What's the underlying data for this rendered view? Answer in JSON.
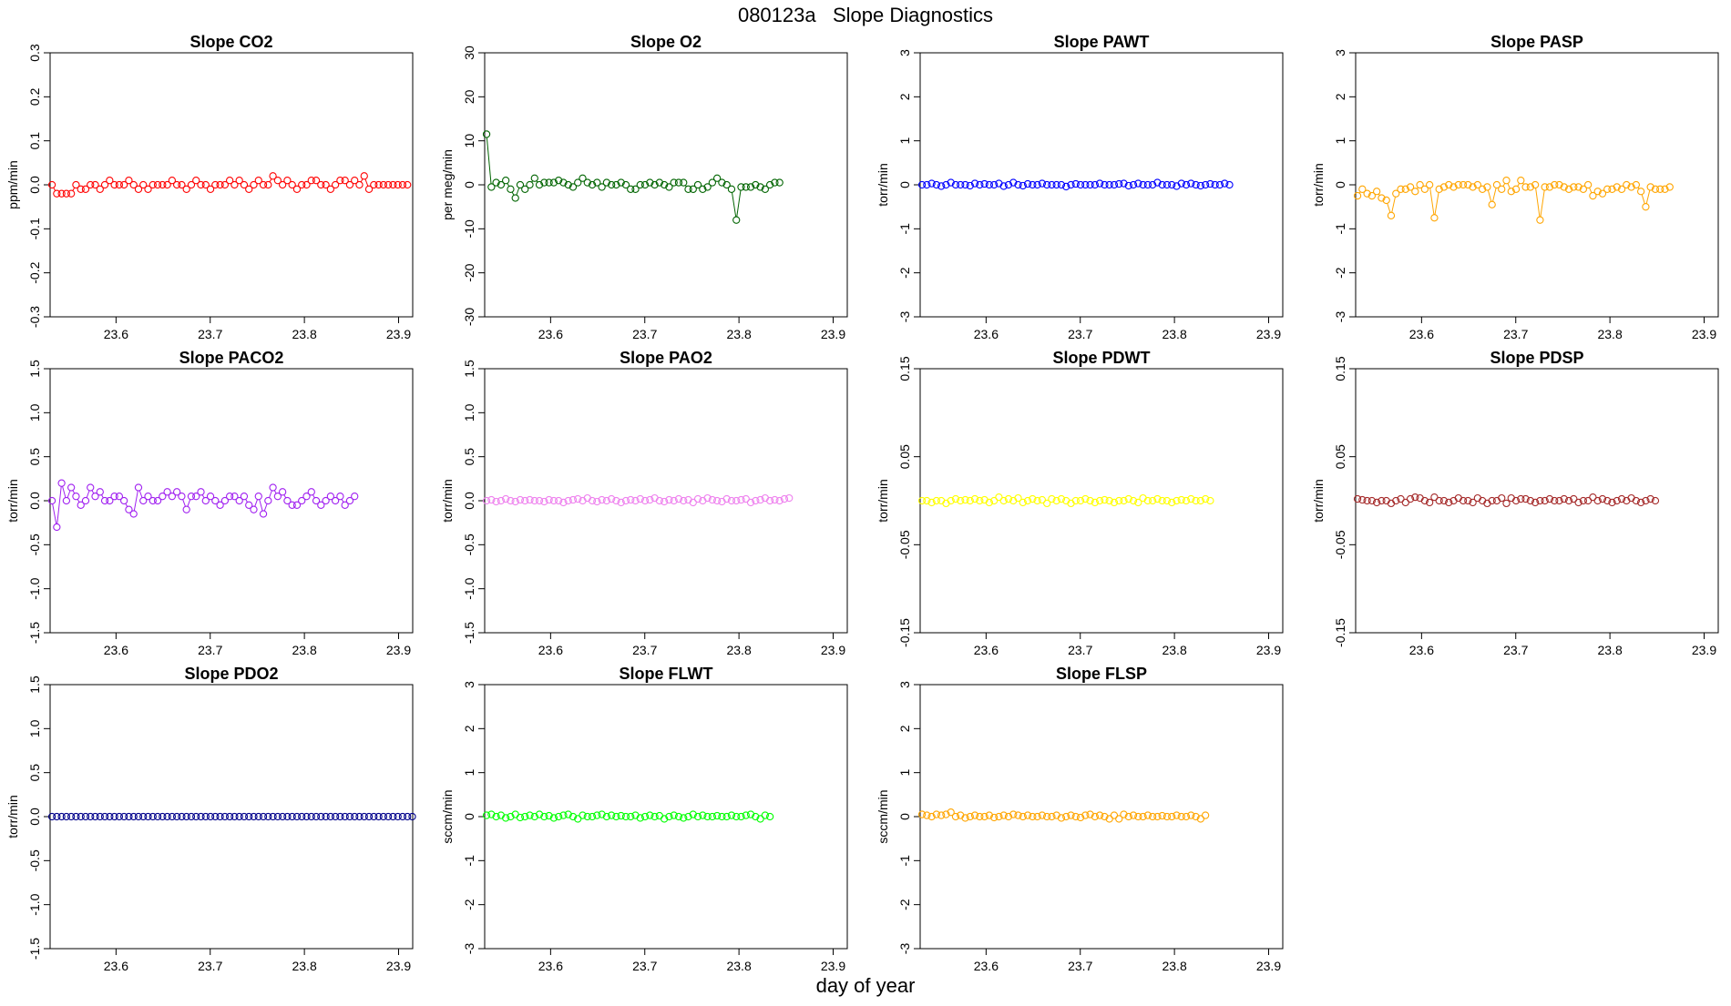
{
  "page": {
    "title": "080123a   Slope Diagnostics",
    "xlabel": "day of year"
  },
  "chart_data": [
    {
      "type": "line",
      "title": "Slope CO2",
      "ylabel": "ppm/min",
      "color": "#ff0000",
      "ylim": [
        -0.3,
        0.3
      ],
      "yticks": [
        -0.3,
        -0.2,
        -0.1,
        0.0,
        0.1,
        0.2,
        0.3
      ],
      "xlim": [
        23.53,
        23.915
      ],
      "xticks": [
        23.6,
        23.7,
        23.8,
        23.9
      ],
      "x_start": 23.532,
      "x_step": 0.0051,
      "values": [
        0.0,
        -0.02,
        -0.02,
        -0.02,
        -0.02,
        0.0,
        -0.01,
        -0.01,
        0.0,
        0.0,
        -0.01,
        0.0,
        0.01,
        0.0,
        0.0,
        0.0,
        0.01,
        0.0,
        -0.01,
        0.0,
        -0.01,
        0.0,
        0.0,
        0.0,
        0.0,
        0.01,
        0.0,
        0.0,
        -0.01,
        0.0,
        0.01,
        0.0,
        0.0,
        -0.01,
        0.0,
        0.0,
        0.0,
        0.01,
        0.0,
        0.01,
        0.0,
        -0.01,
        0.0,
        0.01,
        0.0,
        0.0,
        0.02,
        0.01,
        0.0,
        0.01,
        0.0,
        -0.01,
        0.0,
        0.0,
        0.01,
        0.01,
        0.0,
        0.0,
        -0.01,
        0.0,
        0.01,
        0.01,
        0.0,
        0.01,
        0.0,
        0.02,
        -0.01,
        0.0,
        0.0,
        0.0,
        0.0,
        0.0,
        0.0,
        0.0,
        0.0
      ]
    },
    {
      "type": "line",
      "title": "Slope O2",
      "ylabel": "per meg/min",
      "color": "#006400",
      "ylim": [
        -30,
        30
      ],
      "yticks": [
        -30,
        -20,
        -10,
        0,
        10,
        20,
        30
      ],
      "xlim": [
        23.53,
        23.915
      ],
      "xticks": [
        23.6,
        23.7,
        23.8,
        23.9
      ],
      "x_start": 23.532,
      "x_step": 0.0051,
      "values": [
        11.5,
        -0.5,
        0.5,
        0.0,
        1.0,
        -1.0,
        -3.0,
        0.0,
        -1.0,
        0.0,
        1.5,
        0.0,
        0.5,
        0.5,
        0.5,
        1.0,
        0.5,
        0.0,
        -0.5,
        0.5,
        1.5,
        0.5,
        0.0,
        0.5,
        -0.5,
        0.5,
        0.0,
        0.0,
        0.5,
        0.0,
        -1.0,
        -1.0,
        0.0,
        0.0,
        0.5,
        0.0,
        0.5,
        0.0,
        -0.5,
        0.5,
        0.5,
        0.5,
        -1.0,
        -1.0,
        0.0,
        -1.0,
        -0.5,
        0.5,
        1.5,
        0.5,
        0.0,
        -1.0,
        -8.0,
        -0.5,
        -0.5,
        -0.5,
        0.0,
        -0.5,
        -1.0,
        0.0,
        0.5,
        0.5
      ]
    },
    {
      "type": "line",
      "title": "Slope PAWT",
      "ylabel": "torr/min",
      "color": "#0000ff",
      "ylim": [
        -3,
        3
      ],
      "yticks": [
        -3,
        -2,
        -1,
        0,
        1,
        2,
        3
      ],
      "xlim": [
        23.53,
        23.915
      ],
      "xticks": [
        23.6,
        23.7,
        23.8,
        23.9
      ],
      "x_start": 23.532,
      "x_step": 0.0051,
      "values": [
        0.0,
        0.0,
        0.03,
        0.0,
        -0.03,
        0.0,
        0.05,
        0.0,
        0.0,
        0.0,
        -0.02,
        0.03,
        0.0,
        0.02,
        0.0,
        0.0,
        0.03,
        -0.03,
        0.0,
        0.05,
        0.0,
        -0.02,
        0.02,
        0.0,
        0.0,
        0.03,
        0.0,
        0.0,
        0.0,
        0.0,
        -0.04,
        0.0,
        0.02,
        0.0,
        0.0,
        0.0,
        0.0,
        0.03,
        0.0,
        0.0,
        0.0,
        0.02,
        0.03,
        -0.02,
        0.0,
        0.03,
        0.0,
        0.0,
        0.0,
        0.05,
        0.0,
        0.0,
        0.0,
        -0.03,
        0.03,
        0.0,
        0.03,
        0.0,
        -0.02,
        0.0,
        0.02,
        0.0,
        0.0,
        0.03,
        0.0
      ]
    },
    {
      "type": "line",
      "title": "Slope PASP",
      "ylabel": "torr/min",
      "color": "#ffa500",
      "ylim": [
        -3,
        3
      ],
      "yticks": [
        -3,
        -2,
        -1,
        0,
        1,
        2,
        3
      ],
      "xlim": [
        23.53,
        23.915
      ],
      "xticks": [
        23.6,
        23.7,
        23.8,
        23.9
      ],
      "x_start": 23.532,
      "x_step": 0.0051,
      "values": [
        -0.25,
        -0.1,
        -0.2,
        -0.25,
        -0.15,
        -0.3,
        -0.35,
        -0.7,
        -0.2,
        -0.1,
        -0.1,
        -0.05,
        -0.15,
        0.0,
        -0.1,
        0.0,
        -0.75,
        -0.1,
        -0.05,
        0.0,
        -0.05,
        0.0,
        0.0,
        0.0,
        -0.05,
        0.0,
        -0.1,
        -0.05,
        -0.45,
        0.0,
        -0.1,
        0.1,
        -0.15,
        -0.1,
        0.1,
        -0.05,
        -0.05,
        0.0,
        -0.8,
        -0.05,
        -0.05,
        0.0,
        0.0,
        -0.05,
        -0.1,
        -0.05,
        -0.05,
        -0.1,
        0.0,
        -0.25,
        -0.15,
        -0.2,
        -0.1,
        -0.1,
        -0.05,
        -0.1,
        0.0,
        -0.05,
        0.0,
        -0.15,
        -0.5,
        -0.05,
        -0.1,
        -0.1,
        -0.1,
        -0.05
      ]
    },
    {
      "type": "line",
      "title": "Slope PACO2",
      "ylabel": "torr/min",
      "color": "#a020f0",
      "ylim": [
        -1.5,
        1.5
      ],
      "yticks": [
        -1.5,
        -1.0,
        -0.5,
        0.0,
        0.5,
        1.0,
        1.5
      ],
      "xlim": [
        23.53,
        23.915
      ],
      "xticks": [
        23.6,
        23.7,
        23.8,
        23.9
      ],
      "x_start": 23.532,
      "x_step": 0.0051,
      "values": [
        0.0,
        -0.3,
        0.2,
        0.0,
        0.15,
        0.05,
        -0.05,
        0.0,
        0.15,
        0.05,
        0.1,
        0.0,
        0.0,
        0.05,
        0.05,
        0.0,
        -0.1,
        -0.15,
        0.15,
        0.0,
        0.05,
        0.0,
        0.0,
        0.05,
        0.1,
        0.05,
        0.1,
        0.05,
        -0.1,
        0.05,
        0.05,
        0.1,
        0.0,
        0.05,
        0.0,
        -0.05,
        0.0,
        0.05,
        0.05,
        0.0,
        0.05,
        -0.05,
        -0.1,
        0.05,
        -0.15,
        0.0,
        0.15,
        0.05,
        0.1,
        0.0,
        -0.05,
        -0.05,
        0.0,
        0.05,
        0.1,
        0.0,
        -0.05,
        0.0,
        0.05,
        0.0,
        0.05,
        -0.05,
        0.0,
        0.05
      ]
    },
    {
      "type": "line",
      "title": "Slope PAO2",
      "ylabel": "torr/min",
      "color": "#ee82ee",
      "ylim": [
        -1.5,
        1.5
      ],
      "yticks": [
        -1.5,
        -1.0,
        -0.5,
        0.0,
        0.5,
        1.0,
        1.5
      ],
      "xlim": [
        23.53,
        23.915
      ],
      "xticks": [
        23.6,
        23.7,
        23.8,
        23.9
      ],
      "x_start": 23.532,
      "x_step": 0.0051,
      "values": [
        0.0,
        0.01,
        -0.01,
        0.0,
        0.02,
        0.0,
        -0.01,
        0.01,
        0.0,
        0.01,
        0.0,
        0.0,
        -0.01,
        0.01,
        0.0,
        0.0,
        -0.02,
        0.0,
        0.01,
        0.02,
        0.0,
        0.03,
        0.0,
        -0.01,
        0.01,
        0.0,
        0.02,
        0.0,
        -0.02,
        0.0,
        0.01,
        0.0,
        0.02,
        0.0,
        0.01,
        0.03,
        0.0,
        -0.01,
        0.01,
        0.0,
        0.02,
        0.0,
        0.01,
        -0.02,
        0.02,
        0.0,
        0.03,
        0.01,
        0.0,
        -0.01,
        0.02,
        0.0,
        0.0,
        0.01,
        0.02,
        -0.02,
        0.0,
        0.01,
        0.03,
        0.0,
        0.01,
        0.0,
        0.02,
        0.03
      ]
    },
    {
      "type": "line",
      "title": "Slope PDWT",
      "ylabel": "torr/min",
      "color": "#ffff00",
      "ylim": [
        -0.15,
        0.15
      ],
      "yticks": [
        -0.15,
        -0.05,
        0.05,
        0.15
      ],
      "xlim": [
        23.53,
        23.915
      ],
      "xticks": [
        23.6,
        23.7,
        23.8,
        23.9
      ],
      "x_start": 23.532,
      "x_step": 0.0051,
      "values": [
        0.0,
        0.0,
        -0.002,
        0.0,
        0.0,
        -0.003,
        0.0,
        0.002,
        0.0,
        0.001,
        0.0,
        0.002,
        0.0,
        0.001,
        -0.002,
        0.0,
        0.004,
        0.0,
        0.002,
        0.0,
        0.003,
        -0.002,
        0.0,
        0.002,
        0.0,
        0.001,
        -0.003,
        0.002,
        0.0,
        0.002,
        0.0,
        -0.003,
        0.0,
        0.0,
        0.002,
        0.0,
        -0.002,
        0.0,
        0.001,
        0.0,
        -0.002,
        0.0,
        0.0,
        0.002,
        0.0,
        -0.002,
        0.003,
        0.0,
        0.0,
        0.002,
        0.0,
        0.0,
        -0.002,
        0.0,
        0.001,
        0.0,
        0.002,
        0.0,
        0.0,
        0.002,
        0.0
      ]
    },
    {
      "type": "line",
      "title": "Slope PDSP",
      "ylabel": "torr/min",
      "color": "#a52a2a",
      "ylim": [
        -0.15,
        0.15
      ],
      "yticks": [
        -0.15,
        -0.05,
        0.05,
        0.15
      ],
      "xlim": [
        23.53,
        23.915
      ],
      "xticks": [
        23.6,
        23.7,
        23.8,
        23.9
      ],
      "x_start": 23.532,
      "x_step": 0.0051,
      "values": [
        0.002,
        0.001,
        0.0,
        0.0,
        -0.002,
        0.0,
        0.0,
        -0.003,
        0.0,
        0.002,
        -0.002,
        0.002,
        0.004,
        0.003,
        0.0,
        -0.002,
        0.004,
        0.0,
        0.0,
        -0.002,
        0.0,
        0.003,
        0.0,
        0.0,
        -0.002,
        0.003,
        0.0,
        -0.003,
        0.0,
        0.0,
        0.003,
        -0.003,
        0.003,
        0.0,
        0.002,
        0.002,
        0.0,
        -0.002,
        0.0,
        0.0,
        0.002,
        0.0,
        0.0,
        0.002,
        0.0,
        0.002,
        -0.002,
        0.0,
        0.0,
        0.004,
        0.0,
        0.002,
        0.0,
        -0.002,
        0.0,
        0.002,
        0.0,
        0.003,
        0.0,
        -0.002,
        0.0,
        0.002,
        0.0
      ]
    },
    {
      "type": "line",
      "title": "Slope PDO2",
      "ylabel": "torr/min",
      "color": "#00008b",
      "ylim": [
        -1.5,
        1.5
      ],
      "yticks": [
        -1.5,
        -1.0,
        -0.5,
        0.0,
        0.5,
        1.0,
        1.5
      ],
      "xlim": [
        23.53,
        23.915
      ],
      "xticks": [
        23.6,
        23.7,
        23.8,
        23.9
      ],
      "x_start": 23.532,
      "x_step": 0.0051,
      "values": [
        0,
        0,
        0,
        0,
        0,
        0,
        0,
        0,
        0,
        0,
        0,
        0,
        0,
        0,
        0,
        0,
        0,
        0,
        0,
        0,
        0,
        0,
        0,
        0,
        0,
        0,
        0,
        0,
        0,
        0,
        0,
        0,
        0,
        0,
        0,
        0,
        0,
        0,
        0,
        0,
        0,
        0,
        0,
        0,
        0,
        0,
        0,
        0,
        0,
        0,
        0,
        0,
        0,
        0,
        0,
        0,
        0,
        0,
        0,
        0,
        0,
        0,
        0,
        0,
        0,
        0,
        0,
        0,
        0,
        0,
        0,
        0,
        0,
        0,
        0,
        0
      ]
    },
    {
      "type": "line",
      "title": "Slope FLWT",
      "ylabel": "sccm/min",
      "color": "#00ff00",
      "ylim": [
        -3,
        3
      ],
      "yticks": [
        -3,
        -2,
        -1,
        0,
        1,
        2,
        3
      ],
      "xlim": [
        23.53,
        23.915
      ],
      "xticks": [
        23.6,
        23.7,
        23.8,
        23.9
      ],
      "x_start": 23.532,
      "x_step": 0.0051,
      "values": [
        0.03,
        0.05,
        0.0,
        0.03,
        -0.03,
        0.0,
        0.05,
        -0.02,
        0.0,
        0.03,
        0.0,
        0.05,
        0.0,
        0.02,
        -0.03,
        0.0,
        0.03,
        0.05,
        0.0,
        -0.05,
        0.03,
        0.0,
        0.0,
        0.03,
        0.05,
        0.0,
        0.03,
        0.0,
        0.02,
        0.0,
        0.0,
        0.03,
        -0.03,
        0.0,
        0.03,
        0.0,
        0.02,
        -0.05,
        0.0,
        0.03,
        0.0,
        -0.03,
        0.0,
        0.05,
        0.0,
        0.03,
        0.0,
        0.0,
        0.02,
        0.0,
        0.0,
        0.03,
        0.0,
        0.0,
        0.03,
        0.05,
        0.0,
        -0.05,
        0.03,
        0.0
      ]
    },
    {
      "type": "line",
      "title": "Slope FLSP",
      "ylabel": "sccm/min",
      "color": "#ffa500",
      "ylim": [
        -3,
        3
      ],
      "yticks": [
        -3,
        -2,
        -1,
        0,
        1,
        2,
        3
      ],
      "xlim": [
        23.53,
        23.915
      ],
      "xticks": [
        23.6,
        23.7,
        23.8,
        23.9
      ],
      "x_start": 23.532,
      "x_step": 0.0051,
      "values": [
        0.05,
        0.03,
        0.0,
        0.05,
        0.03,
        0.05,
        0.1,
        0.0,
        0.03,
        -0.03,
        0.0,
        0.03,
        0.0,
        0.0,
        0.03,
        -0.02,
        0.0,
        0.03,
        0.0,
        0.05,
        0.03,
        0.0,
        0.03,
        0.0,
        0.0,
        0.03,
        0.0,
        0.0,
        0.03,
        -0.03,
        0.0,
        0.03,
        0.0,
        -0.02,
        0.03,
        0.05,
        0.0,
        0.03,
        0.0,
        -0.05,
        0.03,
        -0.05,
        0.05,
        0.0,
        0.03,
        0.0,
        0.0,
        0.03,
        0.0,
        0.0,
        0.02,
        0.0,
        0.0,
        0.03,
        0.0,
        0.0,
        0.03,
        0.0,
        -0.05,
        0.03
      ]
    }
  ]
}
